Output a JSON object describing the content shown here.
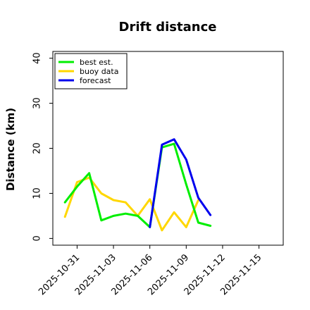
{
  "chart_data": {
    "type": "line",
    "title": "Drift distance",
    "xlabel": "",
    "ylabel": "Distance (km)",
    "ylim": [
      -1.5,
      41.5
    ],
    "xlim": [
      "2025-10-29",
      "2025-11-17"
    ],
    "x_ticks": [
      {
        "label": "2025-10-31",
        "color": "#000000"
      },
      {
        "label": "2025-11-03",
        "color": "#000000"
      },
      {
        "label": "2025-11-06",
        "color": "#2e8b2e"
      },
      {
        "label": "2025-11-09",
        "color": "#000000"
      },
      {
        "label": "2025-11-12",
        "color": "#000000"
      },
      {
        "label": "2025-11-15",
        "color": "#000000"
      }
    ],
    "y_ticks": [
      0,
      10,
      20,
      30,
      40
    ],
    "grid": false,
    "legend_position": "top-left",
    "series": [
      {
        "name": "best est.",
        "color": "#00ee00",
        "points": [
          [
            "2025-10-30",
            8.0
          ],
          [
            "2025-10-31",
            11.5
          ],
          [
            "2025-11-01",
            14.5
          ],
          [
            "2025-11-02",
            4.0
          ],
          [
            "2025-11-03",
            5.0
          ],
          [
            "2025-11-04",
            5.5
          ],
          [
            "2025-11-05",
            5.0
          ],
          [
            "2025-11-06",
            2.5
          ],
          [
            "2025-11-07",
            20.2
          ],
          [
            "2025-11-08",
            21.0
          ],
          [
            "2025-11-09",
            12.0
          ],
          [
            "2025-11-10",
            3.5
          ],
          [
            "2025-11-11",
            2.8
          ]
        ]
      },
      {
        "name": "buoy data",
        "color": "#ffd700",
        "points": [
          [
            "2025-10-30",
            4.8
          ],
          [
            "2025-10-31",
            12.5
          ],
          [
            "2025-11-01",
            13.5
          ],
          [
            "2025-11-02",
            10.0
          ],
          [
            "2025-11-03",
            8.5
          ],
          [
            "2025-11-04",
            8.0
          ],
          [
            "2025-11-05",
            5.0
          ],
          [
            "2025-11-06",
            8.7
          ],
          [
            "2025-11-07",
            1.8
          ],
          [
            "2025-11-08",
            5.8
          ],
          [
            "2025-11-09",
            2.5
          ],
          [
            "2025-11-10",
            8.5
          ]
        ]
      },
      {
        "name": "forecast",
        "color": "#0000ee",
        "points": [
          [
            "2025-11-06",
            2.5
          ],
          [
            "2025-11-07",
            20.8
          ],
          [
            "2025-11-08",
            22.0
          ],
          [
            "2025-11-09",
            17.5
          ],
          [
            "2025-11-10",
            9.0
          ],
          [
            "2025-11-11",
            5.2
          ]
        ]
      }
    ]
  }
}
